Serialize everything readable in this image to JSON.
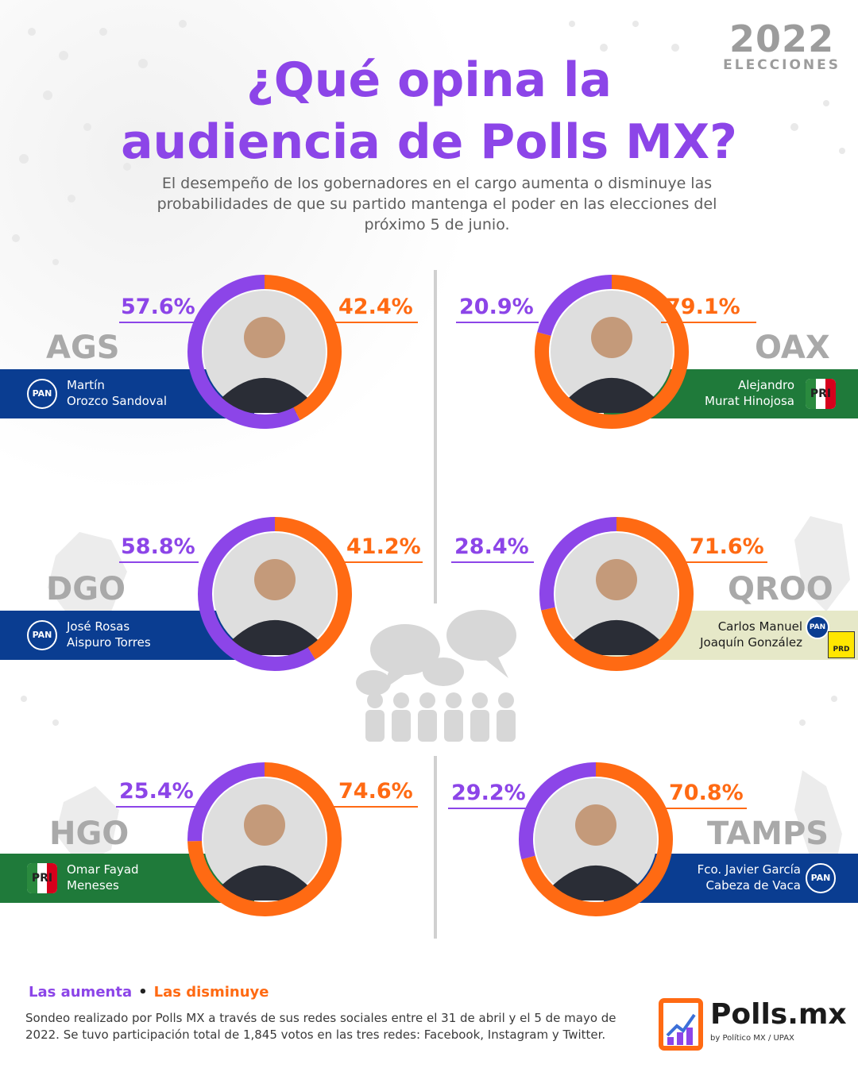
{
  "branding": {
    "year": "2022",
    "year_caption": "ELECCIONES",
    "polls_logo": "Polls.mx",
    "polls_tagline": "by Político MX / UPAX"
  },
  "header": {
    "title_line1": "¿Qué opina la",
    "title_line2": "audiencia de Polls MX?",
    "subtitle": "El desempeño de los gobernadores en el cargo aumenta o disminuye las probabilidades de que su partido mantenga el poder en las elecciones del próximo 5 de junio."
  },
  "colors": {
    "aumenta": "#8c45e8",
    "disminuye": "#ff6a13",
    "pan_band": "#0a3d91",
    "pri_band": "#1f7a3a",
    "prd_band": "#e6e8c8",
    "state_label": "#a9a9a9"
  },
  "chart_data": {
    "type": "pie",
    "series": [
      {
        "name": "Las aumenta"
      },
      {
        "name": "Las disminuye"
      }
    ],
    "charts": [
      {
        "state": "AGS",
        "governor_line1": "Martín",
        "governor_line2": "Orozco Sandoval",
        "parties": [
          "PAN"
        ],
        "aumenta": 57.6,
        "disminuye": 42.4,
        "aumenta_label": "57.6%",
        "disminuye_label": "42.4%"
      },
      {
        "state": "OAX",
        "governor_line1": "Alejandro",
        "governor_line2": "Murat Hinojosa",
        "parties": [
          "PRI"
        ],
        "aumenta": 20.9,
        "disminuye": 79.1,
        "aumenta_label": "20.9%",
        "disminuye_label": "79.1%"
      },
      {
        "state": "DGO",
        "governor_line1": "José Rosas",
        "governor_line2": "Aispuro Torres",
        "parties": [
          "PAN"
        ],
        "aumenta": 58.8,
        "disminuye": 41.2,
        "aumenta_label": "58.8%",
        "disminuye_label": "41.2%"
      },
      {
        "state": "QROO",
        "governor_line1": "Carlos Manuel",
        "governor_line2": "Joaquín González",
        "parties": [
          "PAN",
          "PRD"
        ],
        "aumenta": 28.4,
        "disminuye": 71.6,
        "aumenta_label": "28.4%",
        "disminuye_label": "71.6%"
      },
      {
        "state": "HGO",
        "governor_line1": "Omar Fayad",
        "governor_line2": "Meneses",
        "parties": [
          "PRI"
        ],
        "aumenta": 25.4,
        "disminuye": 74.6,
        "aumenta_label": "25.4%",
        "disminuye_label": "74.6%"
      },
      {
        "state": "TAMPS",
        "governor_line1": "Fco. Javier García",
        "governor_line2": "Cabeza de Vaca",
        "parties": [
          "PAN"
        ],
        "aumenta": 29.2,
        "disminuye": 70.8,
        "aumenta_label": "29.2%",
        "disminuye_label": "70.8%"
      }
    ]
  },
  "legend": {
    "aumenta_label": "Las aumenta",
    "bullet": "•",
    "disminuye_label": "Las disminuye"
  },
  "party_logos": {
    "pan_text": "PAN",
    "pri_text": "PRI",
    "prd_text": "PRD"
  },
  "footnote": "Sondeo realizado por Polls MX a través de sus redes sociales entre el 31 de abril y el 5 de mayo de 2022. Se tuvo participación total de 1,845 votos en las tres redes: Facebook, Instagram y Twitter."
}
